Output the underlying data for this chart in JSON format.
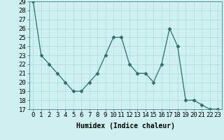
{
  "x": [
    0,
    1,
    2,
    3,
    4,
    5,
    6,
    7,
    8,
    9,
    10,
    11,
    12,
    13,
    14,
    15,
    16,
    17,
    18,
    19,
    20,
    21,
    22,
    23
  ],
  "y": [
    29,
    23,
    22,
    21,
    20,
    19,
    19,
    20,
    21,
    23,
    25,
    25,
    22,
    21,
    21,
    20,
    22,
    26,
    24,
    18,
    18,
    17.5,
    17,
    17
  ],
  "line_color": "#2d6e6e",
  "marker": "D",
  "marker_size": 2.5,
  "bg_color": "#cff0f0",
  "grid_color": "#aadddd",
  "xlabel": "Humidex (Indice chaleur)",
  "ylim": [
    17,
    29
  ],
  "xlim": [
    -0.5,
    23.5
  ],
  "yticks": [
    17,
    18,
    19,
    20,
    21,
    22,
    23,
    24,
    25,
    26,
    27,
    28,
    29
  ],
  "xticks": [
    0,
    1,
    2,
    3,
    4,
    5,
    6,
    7,
    8,
    9,
    10,
    11,
    12,
    13,
    14,
    15,
    16,
    17,
    18,
    19,
    20,
    21,
    22,
    23
  ],
  "label_fontsize": 7,
  "tick_fontsize": 6.5
}
